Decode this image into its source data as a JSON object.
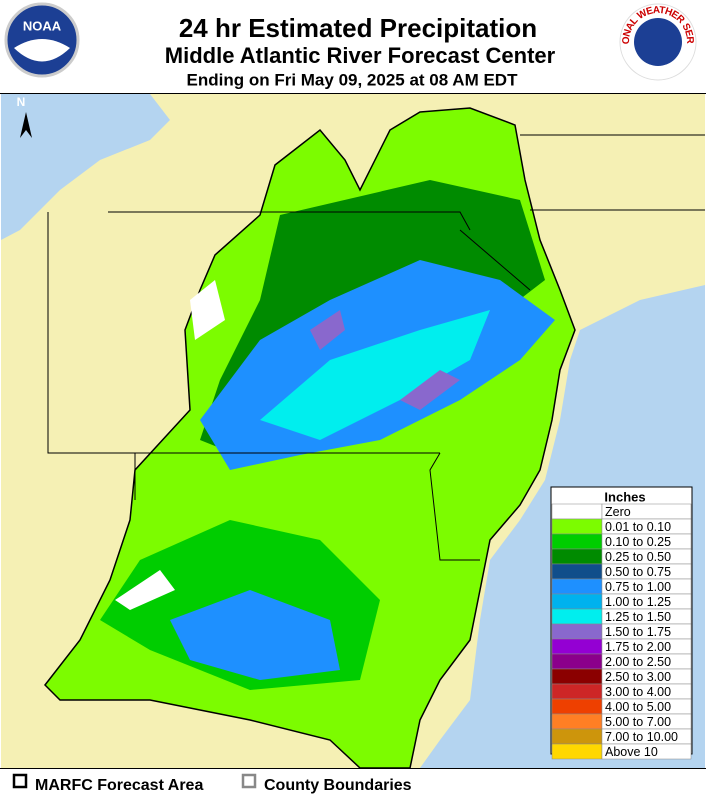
{
  "header": {
    "title": "24 hr Estimated Precipitation",
    "subtitle": "Middle Atlantic River Forecast Center",
    "ending": "Ending on Fri May 09, 2025 at 08 AM EDT",
    "left_logo": "NOAA",
    "right_logo": "NATIONAL WEATHER SERVICE"
  },
  "map": {
    "north_label": "N",
    "land_color": "#f5f0b4",
    "water_color": "#b4d4f0"
  },
  "legend": {
    "title": "Inches",
    "items": [
      {
        "label": "Zero",
        "color": "#ffffff"
      },
      {
        "label": "0.01 to 0.10",
        "color": "#7cfc00"
      },
      {
        "label": "0.10 to 0.25",
        "color": "#00cd00"
      },
      {
        "label": "0.25 to 0.50",
        "color": "#008b00"
      },
      {
        "label": "0.50 to 0.75",
        "color": "#104e8b"
      },
      {
        "label": "0.75 to 1.00",
        "color": "#1e90ff"
      },
      {
        "label": "1.00 to 1.25",
        "color": "#00b2ee"
      },
      {
        "label": "1.25 to 1.50",
        "color": "#00eeee"
      },
      {
        "label": "1.50 to 1.75",
        "color": "#8968cd"
      },
      {
        "label": "1.75 to 2.00",
        "color": "#9400d3"
      },
      {
        "label": "2.00 to 2.50",
        "color": "#8b008b"
      },
      {
        "label": "2.50 to 3.00",
        "color": "#8b0000"
      },
      {
        "label": "3.00 to 4.00",
        "color": "#cd2626"
      },
      {
        "label": "4.00 to 5.00",
        "color": "#ee4000"
      },
      {
        "label": "5.00 to 7.00",
        "color": "#ff7f24"
      },
      {
        "label": "7.00 to 10.00",
        "color": "#cd950c"
      },
      {
        "label": "Above 10",
        "color": "#ffd700"
      }
    ]
  },
  "footer": {
    "items": [
      "MARFC Forecast Area",
      "County Boundaries"
    ]
  }
}
